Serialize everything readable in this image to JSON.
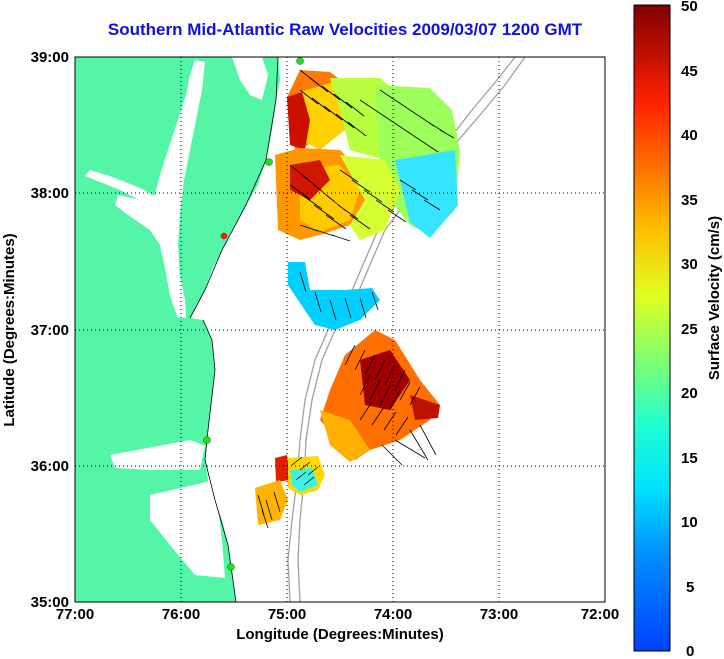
{
  "title": "Southern Mid-Atlantic Raw Velocities 2009/03/07 1200 GMT",
  "x_axis": {
    "label": "Longitude (Degrees:Minutes)",
    "ticks": [
      "77:00",
      "76:00",
      "75:00",
      "74:00",
      "73:00",
      "72:00"
    ]
  },
  "y_axis": {
    "label": "Latitude (Degrees:Minutes)",
    "ticks": [
      "39:00",
      "38:00",
      "37:00",
      "36:00",
      "35:00"
    ]
  },
  "colorbar": {
    "label": "Surface Velocity (cm/s)",
    "ticks": [
      "50",
      "45",
      "40",
      "35",
      "30",
      "25",
      "20",
      "15",
      "10",
      "5",
      "0"
    ],
    "min": 0,
    "max": 50
  },
  "colors": {
    "land": "#55f5a8",
    "title": "#1010e0",
    "grid": "#000000",
    "bathymetry": "#a0a0a0",
    "station": "#22dd22"
  }
}
